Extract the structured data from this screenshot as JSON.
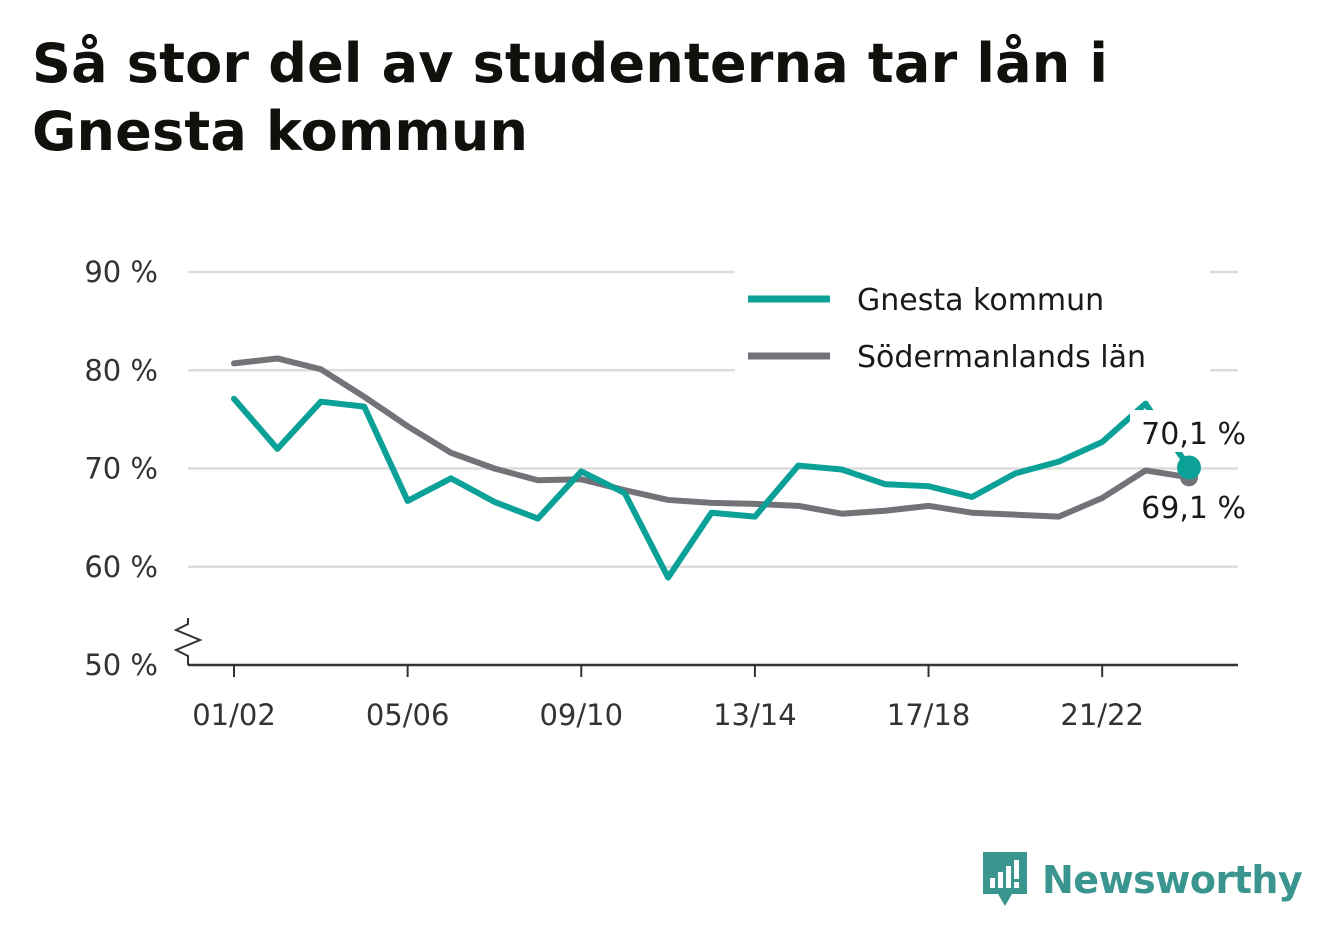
{
  "title": "Så stor del av studenterna tar lån i Gnesta kommun",
  "brand": {
    "name": "Newsworthy",
    "icon": "newsworthy-logo-icon",
    "color": "#3a958f"
  },
  "chart_data": {
    "type": "line",
    "title": "Så stor del av studenterna tar lån i Gnesta kommun",
    "xlabel": "",
    "ylabel": "",
    "ylim": [
      50,
      90
    ],
    "y_ticks": [
      50,
      60,
      70,
      80,
      90
    ],
    "y_tick_labels": [
      "50 %",
      "60 %",
      "70 %",
      "80 %",
      "90 %"
    ],
    "y_axis_break": true,
    "grid": true,
    "legend_position": "top-right",
    "x_tick_labels": [
      "01/02",
      "05/06",
      "09/10",
      "13/14",
      "17/18",
      "21/22"
    ],
    "x": [
      "01/02",
      "02/03",
      "03/04",
      "04/05",
      "05/06",
      "06/07",
      "07/08",
      "08/09",
      "09/10",
      "10/11",
      "11/12",
      "12/13",
      "13/14",
      "14/15",
      "15/16",
      "16/17",
      "17/18",
      "18/19",
      "19/20",
      "20/21",
      "21/22",
      "22/23",
      "23/24"
    ],
    "series": [
      {
        "name": "Gnesta kommun",
        "color": "#0ca197",
        "values": [
          77.1,
          72.0,
          76.8,
          76.3,
          66.7,
          69.0,
          66.6,
          64.9,
          69.7,
          67.5,
          58.9,
          65.5,
          65.1,
          70.3,
          69.9,
          68.4,
          68.2,
          67.1,
          69.5,
          70.7,
          72.7,
          76.6,
          70.1
        ],
        "end_label": "70,1 %"
      },
      {
        "name": "Södermanlands län",
        "color": "#737278",
        "values": [
          80.7,
          81.2,
          80.1,
          77.3,
          74.3,
          71.6,
          70.0,
          68.8,
          68.9,
          67.8,
          66.8,
          66.5,
          66.4,
          66.2,
          65.4,
          65.7,
          66.2,
          65.5,
          65.3,
          65.1,
          67.0,
          69.8,
          69.1
        ],
        "end_label": "69,1 %"
      }
    ]
  }
}
